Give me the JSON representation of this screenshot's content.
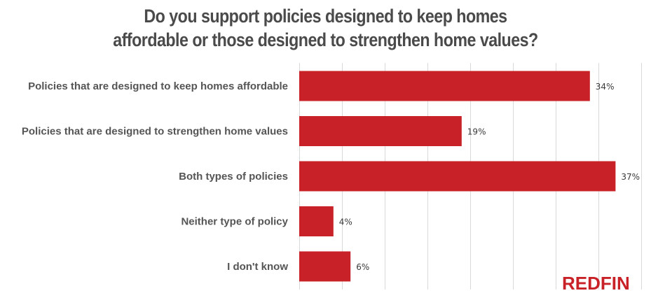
{
  "chart_data": {
    "type": "bar",
    "orientation": "horizontal",
    "title": "Do you support policies designed to keep homes affordable or those designed to strengthen home values?",
    "title_lines": [
      "Do you support policies designed to keep homes",
      "affordable or those designed to strengthen home values?"
    ],
    "categories": [
      "Policies that are designed to keep homes affordable",
      "Policies that are designed to strengthen home values",
      "Both types of policies",
      "Neither type of policy",
      "I don't know"
    ],
    "values": [
      34,
      19,
      37,
      4,
      6
    ],
    "value_labels": [
      "34%",
      "19%",
      "37%",
      "4%",
      "6%"
    ],
    "unit": "%",
    "xlim": [
      0,
      40
    ],
    "grid_step": 5,
    "grid": true,
    "xlabel": "",
    "ylabel": "",
    "bar_color": "#c82127",
    "legend": "none"
  },
  "branding": {
    "logo_text": "REDFIN",
    "logo_color": "#c82127"
  }
}
